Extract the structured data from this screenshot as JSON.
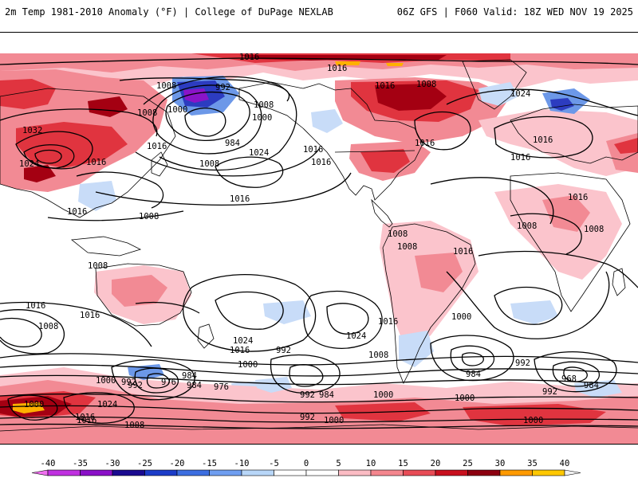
{
  "header": {
    "left": "2m Temp 1981-2010 Anomaly (°F) | College of DuPage NEXLAB",
    "right": "06Z GFS | F060 Valid: 18Z WED NOV 19 2025"
  },
  "colorbar": {
    "ticks": [
      "-40",
      "-35",
      "-30",
      "-25",
      "-20",
      "-15",
      "-10",
      "-5",
      "0",
      "5",
      "10",
      "15",
      "20",
      "25",
      "30",
      "35",
      "40"
    ],
    "colors": [
      "#f070f0",
      "#c030e0",
      "#8a10c8",
      "#1a0a90",
      "#1c3cc8",
      "#3c6ee0",
      "#6f9ef0",
      "#b8d6f8",
      "#ffffff",
      "#ffffff",
      "#fbbcc4",
      "#f4868e",
      "#e84c56",
      "#c8101e",
      "#8c0010",
      "#ff9a00",
      "#ffc800",
      "#f0f0f0"
    ]
  },
  "colors": {
    "warm_light": "#fbc4cc",
    "warm_mid": "#f28a94",
    "warm_strong": "#e0343f",
    "warm_deep": "#a40012",
    "warm_extreme": "#ffb000",
    "cold_light": "#c8dcf8",
    "cold_mid": "#6c98e8",
    "cold_strong": "#2c3cc0",
    "cold_extreme": "#8a14c8",
    "contour": "#000000",
    "coast": "#000000"
  },
  "contour_labels": [
    {
      "text": "1016",
      "id": "a"
    },
    {
      "text": "1016",
      "id": "b"
    },
    {
      "text": "1008",
      "id": "c"
    },
    {
      "text": "992",
      "id": "d"
    },
    {
      "text": "1000",
      "id": "e"
    },
    {
      "text": "1008",
      "id": "f"
    },
    {
      "text": "1016",
      "id": "g"
    },
    {
      "text": "1008",
      "id": "h"
    },
    {
      "text": "1000",
      "id": "i"
    },
    {
      "text": "1032",
      "id": "j"
    },
    {
      "text": "1024",
      "id": "k"
    },
    {
      "text": "1008",
      "id": "l"
    },
    {
      "text": "1016",
      "id": "m"
    },
    {
      "text": "984",
      "id": "n"
    },
    {
      "text": "1008",
      "id": "o"
    },
    {
      "text": "1024",
      "id": "p"
    },
    {
      "text": "1016",
      "id": "q"
    },
    {
      "text": "1016",
      "id": "r"
    },
    {
      "text": "1016",
      "id": "s"
    },
    {
      "text": "1024",
      "id": "t"
    },
    {
      "text": "1016",
      "id": "u"
    },
    {
      "text": "1008",
      "id": "v"
    },
    {
      "text": "1016",
      "id": "w"
    },
    {
      "text": "1016",
      "id": "x"
    },
    {
      "text": "1008",
      "id": "y"
    },
    {
      "text": "1008",
      "id": "z"
    },
    {
      "text": "1008",
      "id": "aa"
    },
    {
      "text": "1016",
      "id": "ab"
    },
    {
      "text": "1016",
      "id": "ac"
    },
    {
      "text": "1008",
      "id": "ad"
    },
    {
      "text": "1016",
      "id": "ae"
    },
    {
      "text": "1008",
      "id": "af"
    },
    {
      "text": "1016",
      "id": "ag"
    },
    {
      "text": "1008",
      "id": "ah"
    },
    {
      "text": "1016",
      "id": "ai"
    },
    {
      "text": "1016",
      "id": "aj"
    },
    {
      "text": "1000",
      "id": "ak"
    },
    {
      "text": "1024",
      "id": "al"
    },
    {
      "text": "1016",
      "id": "am"
    },
    {
      "text": "1024",
      "id": "an"
    },
    {
      "text": "1016",
      "id": "ao"
    },
    {
      "text": "992",
      "id": "ap"
    },
    {
      "text": "1008",
      "id": "aq"
    },
    {
      "text": "1000",
      "id": "ar"
    },
    {
      "text": "984",
      "id": "as"
    },
    {
      "text": "992",
      "id": "at"
    },
    {
      "text": "976",
      "id": "au"
    },
    {
      "text": "984",
      "id": "av"
    },
    {
      "text": "976",
      "id": "aw"
    },
    {
      "text": "1000",
      "id": "ax"
    },
    {
      "text": "992",
      "id": "ay"
    },
    {
      "text": "984",
      "id": "az"
    },
    {
      "text": "1000",
      "id": "ba"
    },
    {
      "text": "1024",
      "id": "bb"
    },
    {
      "text": "1000",
      "id": "bc"
    },
    {
      "text": "1016",
      "id": "bd"
    },
    {
      "text": "992",
      "id": "be"
    },
    {
      "text": "984",
      "id": "bf"
    },
    {
      "text": "992",
      "id": "bg"
    },
    {
      "text": "968",
      "id": "bh"
    },
    {
      "text": "984",
      "id": "bi"
    },
    {
      "text": "992",
      "id": "bj"
    },
    {
      "text": "992",
      "id": "bk"
    },
    {
      "text": "1000",
      "id": "bl"
    },
    {
      "text": "1000",
      "id": "bm"
    },
    {
      "text": "1008",
      "id": "bn"
    },
    {
      "text": "1000",
      "id": "bo"
    },
    {
      "text": "1016",
      "id": "bp"
    }
  ]
}
